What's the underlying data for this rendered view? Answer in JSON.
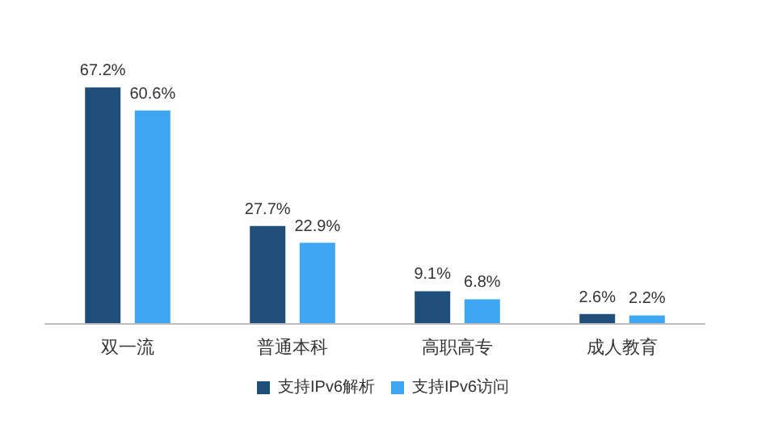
{
  "chart_data": {
    "type": "bar",
    "categories": [
      "双一流",
      "普通本科",
      "高职高专",
      "成人教育"
    ],
    "series": [
      {
        "name": "支持IPv6解析",
        "color": "#1f4e79",
        "values": [
          67.2,
          27.7,
          9.1,
          2.6
        ],
        "value_labels": [
          "67.2%",
          "27.7%",
          "9.1%",
          "2.6%"
        ]
      },
      {
        "name": "支持IPv6访问",
        "color": "#3ea6f2",
        "values": [
          60.6,
          22.9,
          6.8,
          2.2
        ],
        "value_labels": [
          "60.6%",
          "22.9%",
          "6.8%",
          "2.2%"
        ]
      }
    ],
    "legend": "bottom",
    "grid": false,
    "tick_labels": "x"
  }
}
